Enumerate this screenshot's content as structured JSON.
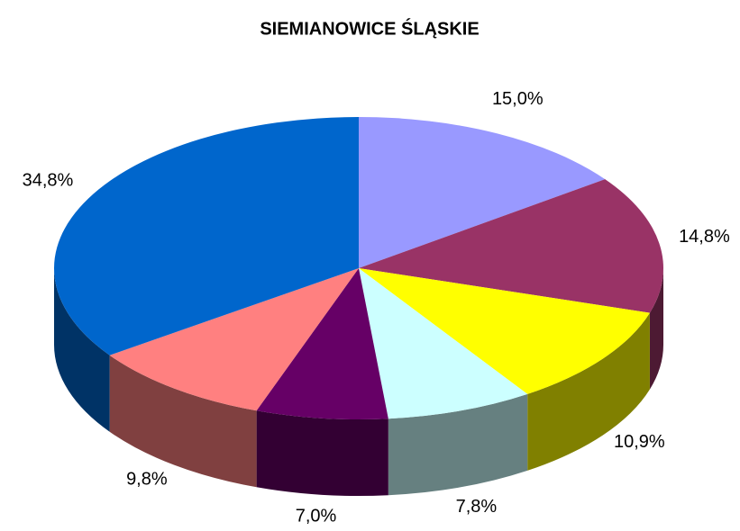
{
  "chart_data": {
    "type": "pie",
    "title": "SIEMIANOWICE ŚLĄSKIE",
    "values": [
      15.0,
      14.8,
      10.9,
      7.8,
      7.0,
      9.8,
      34.8
    ],
    "value_labels": [
      "15,0%",
      "14,8%",
      "10,9%",
      "7,8%",
      "7,0%",
      "9,8%",
      "34,8%"
    ],
    "colors": [
      "#9999ff",
      "#993366",
      "#ffff00",
      "#ccffff",
      "#660066",
      "#ff8080",
      "#0066cc"
    ]
  }
}
